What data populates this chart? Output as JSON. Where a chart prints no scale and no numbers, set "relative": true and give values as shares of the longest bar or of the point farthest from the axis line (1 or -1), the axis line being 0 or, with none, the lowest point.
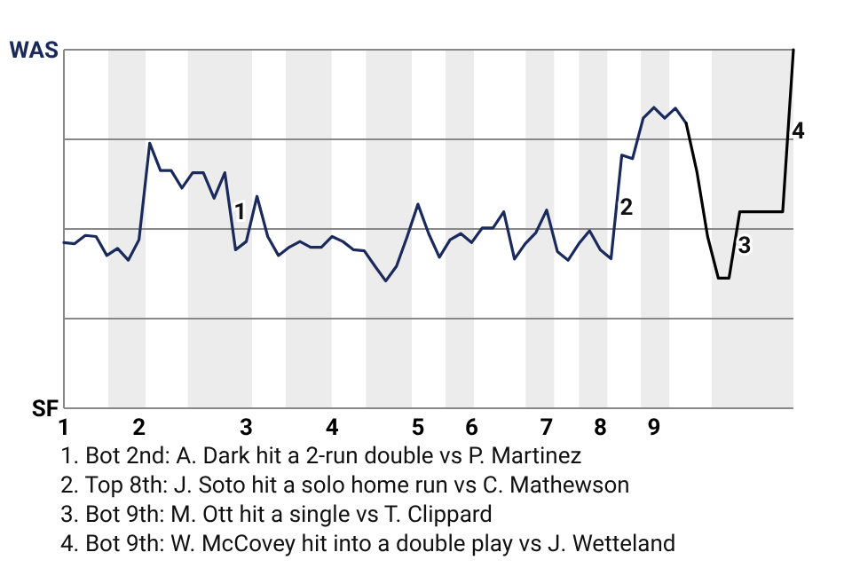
{
  "chart_data": {
    "type": "line",
    "relative": true,
    "marker": "none",
    "line_style": "solid",
    "categories": [
      "1",
      null,
      null,
      null,
      null,
      null,
      null,
      "2",
      null,
      null,
      null,
      null,
      null,
      null,
      null,
      null,
      null,
      "3",
      null,
      null,
      null,
      null,
      null,
      null,
      null,
      "4",
      null,
      null,
      null,
      null,
      null,
      null,
      null,
      "5",
      null,
      null,
      null,
      null,
      "6",
      null,
      null,
      null,
      null,
      null,
      null,
      "7",
      null,
      null,
      null,
      null,
      "8",
      null,
      null,
      null,
      null,
      "9",
      null,
      null,
      null,
      null,
      null,
      null,
      null,
      null,
      null,
      null,
      null,
      null,
      null
    ],
    "ref_lines": [
      {
        "axis": "y",
        "value": 0.25,
        "color": "#888888"
      },
      {
        "axis": "y",
        "value": 0.5,
        "color": "#888888"
      },
      {
        "axis": "y",
        "value": 0.75,
        "color": "#888888"
      },
      {
        "axis": "y",
        "value": 1,
        "color": "#888888"
      }
    ],
    "series": [
      {
        "color": "#1b2a5c",
        "values": [
          0.462,
          0.459,
          0.482,
          0.479,
          0.426,
          0.446,
          0.413,
          0.47,
          0.739,
          0.663,
          0.663,
          0.614,
          0.657,
          0.657,
          0.586,
          0.657,
          0.442,
          0.465,
          0.591,
          0.479,
          0.426,
          0.449,
          0.465,
          0.449,
          0.449,
          0.479,
          0.465,
          0.442,
          0.439,
          0.396,
          0.355,
          0.396,
          0.479,
          0.569,
          0.487,
          0.421,
          0.47,
          0.487,
          0.462,
          0.503,
          0.503,
          0.548,
          0.416,
          0.459,
          0.49,
          0.553,
          0.437,
          0.413,
          0.459,
          0.495,
          0.442,
          0.417,
          0.706,
          0.696,
          0.809,
          0.839,
          0.809,
          0.837,
          0.795,
          null,
          null,
          null,
          null,
          null,
          null,
          null,
          null,
          null,
          null
        ]
      },
      {
        "color": "#000000",
        "values": [
          null,
          null,
          null,
          null,
          null,
          null,
          null,
          null,
          null,
          null,
          null,
          null,
          null,
          null,
          null,
          null,
          null,
          null,
          null,
          null,
          null,
          null,
          null,
          null,
          null,
          null,
          null,
          null,
          null,
          null,
          null,
          null,
          null,
          null,
          null,
          null,
          null,
          null,
          null,
          null,
          null,
          null,
          null,
          null,
          null,
          null,
          null,
          null,
          null,
          null,
          null,
          null,
          null,
          null,
          null,
          null,
          null,
          null,
          0.795,
          0.66,
          0.479,
          0.363,
          0.363,
          0.548,
          0.548,
          0.548,
          0.548,
          0.548,
          1.0
        ]
      }
    ],
    "annotations": [
      "WAS",
      "SF",
      "1",
      "2",
      "3",
      "4",
      "1. Bot 2nd: A. Dark hit a 2-run double vs P. Martinez",
      "2. Top 8th: J. Soto hit a solo home run vs C. Mathewson",
      "3. Bot 9th: M. Ott hit a single vs T. Clippard",
      "4. Bot 9th: W. McCovey hit into a double play vs J. Wetteland"
    ]
  }
}
